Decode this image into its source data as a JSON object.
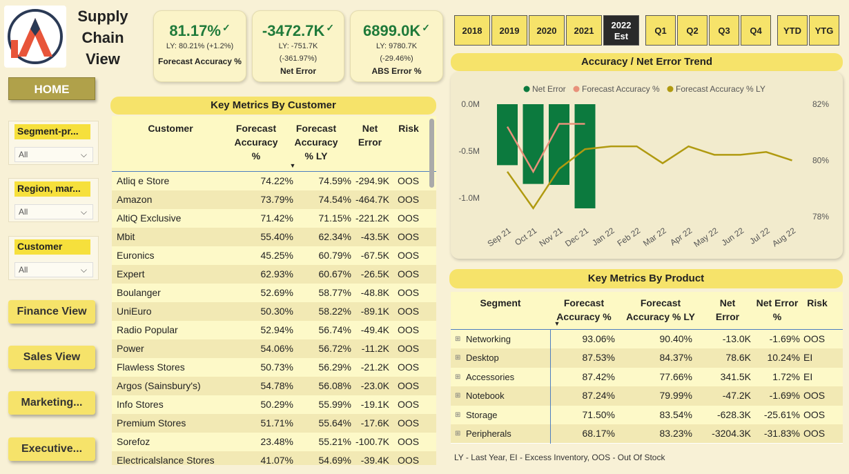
{
  "app": {
    "title_line1": "Supply",
    "title_line2": "Chain",
    "title_line3": "View"
  },
  "kpis": [
    {
      "value": "81.17%",
      "sub1": "LY: 80.21% (+1.2%)",
      "sub2": "",
      "label": "Forecast Accuracy %"
    },
    {
      "value": "-3472.7K",
      "sub1": "LY: -751.7K",
      "sub2": "(-361.97%)",
      "label": "Net Error"
    },
    {
      "value": "6899.0K",
      "sub1": "LY: 9780.7K",
      "sub2": "(-29.46%)",
      "label": "ABS Error %"
    }
  ],
  "nav": {
    "home": "HOME",
    "finance": "Finance View",
    "sales": "Sales View",
    "marketing": "Marketing...",
    "executive": "Executive..."
  },
  "slicers": [
    {
      "title": "Segment-pr...",
      "value": "All"
    },
    {
      "title": "Region, mar...",
      "value": "All"
    },
    {
      "title": "Customer",
      "value": "All"
    }
  ],
  "years": [
    "2018",
    "2019",
    "2020",
    "2021"
  ],
  "year_selected": {
    "line1": "2022",
    "line2": "Est"
  },
  "quarters": [
    "Q1",
    "Q2",
    "Q3",
    "Q4"
  ],
  "periods": [
    "YTD",
    "YTG"
  ],
  "customer_section": {
    "title": "Key Metrics By Customer",
    "headers": {
      "customer": "Customer",
      "fa": "Forecast Accuracy %",
      "fa_ly": "Forecast Accuracy % LY",
      "ne": "Net Error",
      "risk": "Risk"
    },
    "rows": [
      {
        "name": "Atliq e Store",
        "fa": "74.22%",
        "ly": "74.59%",
        "ne": "-294.9K",
        "risk": "OOS"
      },
      {
        "name": "Amazon",
        "fa": "73.79%",
        "ly": "74.54%",
        "ne": "-464.7K",
        "risk": "OOS"
      },
      {
        "name": "AltiQ Exclusive",
        "fa": "71.42%",
        "ly": "71.15%",
        "ne": "-221.2K",
        "risk": "OOS"
      },
      {
        "name": "Mbit",
        "fa": "55.40%",
        "ly": "62.34%",
        "ne": "-43.5K",
        "risk": "OOS"
      },
      {
        "name": "Euronics",
        "fa": "45.25%",
        "ly": "60.79%",
        "ne": "-67.5K",
        "risk": "OOS"
      },
      {
        "name": "Expert",
        "fa": "62.93%",
        "ly": "60.67%",
        "ne": "-26.5K",
        "risk": "OOS"
      },
      {
        "name": "Boulanger",
        "fa": "52.69%",
        "ly": "58.77%",
        "ne": "-48.8K",
        "risk": "OOS"
      },
      {
        "name": "UniEuro",
        "fa": "50.30%",
        "ly": "58.22%",
        "ne": "-89.1K",
        "risk": "OOS"
      },
      {
        "name": "Radio Popular",
        "fa": "52.94%",
        "ly": "56.74%",
        "ne": "-49.4K",
        "risk": "OOS"
      },
      {
        "name": "Power",
        "fa": "54.06%",
        "ly": "56.72%",
        "ne": "-11.2K",
        "risk": "OOS"
      },
      {
        "name": "Flawless Stores",
        "fa": "50.73%",
        "ly": "56.29%",
        "ne": "-21.2K",
        "risk": "OOS"
      },
      {
        "name": "Argos (Sainsbury's)",
        "fa": "54.78%",
        "ly": "56.08%",
        "ne": "-23.0K",
        "risk": "OOS"
      },
      {
        "name": "Info Stores",
        "fa": "50.29%",
        "ly": "55.99%",
        "ne": "-19.1K",
        "risk": "OOS"
      },
      {
        "name": "Premium Stores",
        "fa": "51.71%",
        "ly": "55.64%",
        "ne": "-17.6K",
        "risk": "OOS"
      },
      {
        "name": "Sorefoz",
        "fa": "23.48%",
        "ly": "55.21%",
        "ne": "-100.7K",
        "risk": "OOS"
      },
      {
        "name": "Electricalslance Stores",
        "fa": "41.07%",
        "ly": "54.69%",
        "ne": "-39.4K",
        "risk": "OOS"
      }
    ]
  },
  "trend": {
    "title": "Accuracy / Net Error Trend",
    "legend": [
      "Net Error",
      "Forecast Accuracy %",
      "Forecast Accuracy % LY"
    ],
    "colors": {
      "net_error": "#0c7a3e",
      "fa": "#e8917a",
      "fa_ly": "#b09a10"
    },
    "left_ticks": [
      "0.0M",
      "-0.5M",
      "-1.0M"
    ],
    "right_ticks": [
      "82%",
      "80%",
      "78%"
    ],
    "months": [
      "Sep 21",
      "Oct 21",
      "Nov 21",
      "Dec 21",
      "Jan 22",
      "Feb 22",
      "Mar 22",
      "Apr 22",
      "May 22",
      "Jun 22",
      "Jul 22",
      "Aug 22"
    ],
    "net_error_m": [
      -0.65,
      -0.85,
      -0.86,
      -1.11
    ],
    "fa_pct": [
      81.2,
      79.6,
      81.3,
      81.3
    ],
    "fa_ly_pct": [
      79.6,
      78.3,
      79.7,
      80.4,
      80.5,
      80.5,
      79.9,
      80.5,
      80.2,
      80.2,
      80.3,
      80.0
    ]
  },
  "product_section": {
    "title": "Key Metrics By Product",
    "headers": {
      "segment": "Segment",
      "fa": "Forecast Accuracy %",
      "fa_ly": "Forecast Accuracy % LY",
      "ne": "Net Error",
      "nep": "Net Error %",
      "risk": "Risk"
    },
    "rows": [
      {
        "name": "Networking",
        "fa": "93.06%",
        "ly": "90.40%",
        "ne": "-13.0K",
        "nep": "-1.69%",
        "risk": "OOS"
      },
      {
        "name": "Desktop",
        "fa": "87.53%",
        "ly": "84.37%",
        "ne": "78.6K",
        "nep": "10.24%",
        "risk": "EI"
      },
      {
        "name": "Accessories",
        "fa": "87.42%",
        "ly": "77.66%",
        "ne": "341.5K",
        "nep": "1.72%",
        "risk": "EI"
      },
      {
        "name": "Notebook",
        "fa": "87.24%",
        "ly": "79.99%",
        "ne": "-47.2K",
        "nep": "-1.69%",
        "risk": "OOS"
      },
      {
        "name": "Storage",
        "fa": "71.50%",
        "ly": "83.54%",
        "ne": "-628.3K",
        "nep": "-25.61%",
        "risk": "OOS"
      },
      {
        "name": "Peripherals",
        "fa": "68.17%",
        "ly": "83.23%",
        "ne": "-3204.3K",
        "nep": "-31.83%",
        "risk": "OOS"
      }
    ]
  },
  "footnote": "LY - Last Year, EI - Excess Inventory, OOS - Out Of Stock"
}
